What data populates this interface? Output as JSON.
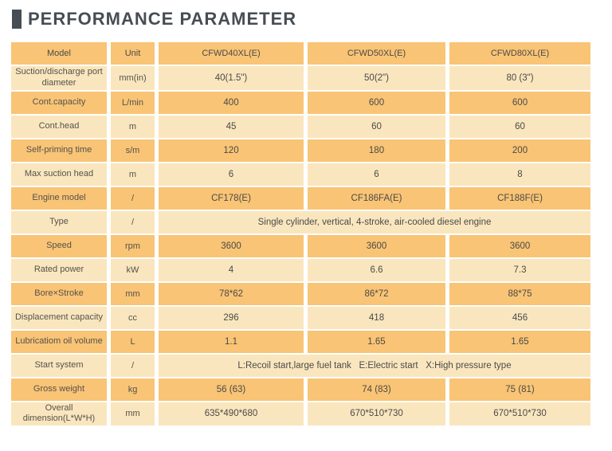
{
  "title": "PERFORMANCE PARAMETER",
  "colors": {
    "row_dark": "#F9C475",
    "row_light": "#FAE6BE",
    "title_gray": "#474D54",
    "label_text": "#55524C",
    "value_text": "#4A4A48"
  },
  "table": {
    "columns": [
      "Model",
      "Unit",
      "CFWD40XL(E)",
      "CFWD50XL(E)",
      "CFWD80XL(E)"
    ],
    "rows": [
      {
        "label": "Suction/discharge port diameter",
        "unit": "mm(in)",
        "values": [
          "40(1.5\")",
          "50(2\")",
          "80 (3\")"
        ]
      },
      {
        "label": "Cont.capacity",
        "unit": "L/min",
        "values": [
          "400",
          "600",
          "600"
        ]
      },
      {
        "label": "Cont.head",
        "unit": "m",
        "values": [
          "45",
          "60",
          "60"
        ]
      },
      {
        "label": "Self-priming time",
        "unit": "s/m",
        "values": [
          "120",
          "180",
          "200"
        ]
      },
      {
        "label": "Max suction head",
        "unit": "m",
        "values": [
          "6",
          "6",
          "8"
        ]
      },
      {
        "label": "Engine model",
        "unit": "/",
        "values": [
          "CF178(E)",
          "CF186FA(E)",
          "CF188F(E)"
        ]
      },
      {
        "label": "Type",
        "unit": "/",
        "span": "Single cylinder, vertical, 4-stroke, air-cooled diesel engine"
      },
      {
        "label": "Speed",
        "unit": "rpm",
        "values": [
          "3600",
          "3600",
          "3600"
        ]
      },
      {
        "label": "Rated power",
        "unit": "kW",
        "values": [
          "4",
          "6.6",
          "7.3"
        ]
      },
      {
        "label": "Bore×Stroke",
        "unit": "mm",
        "values": [
          "78*62",
          "86*72",
          "88*75"
        ]
      },
      {
        "label": "Displacement capacity",
        "unit": "cc",
        "values": [
          "296",
          "418",
          "456"
        ]
      },
      {
        "label": "Lubricatiom oil volume",
        "unit": "L",
        "values": [
          "1.1",
          "1.65",
          "1.65"
        ]
      },
      {
        "label": "Start system",
        "unit": "/",
        "span": "L:Recoil start,large fuel tank   E:Electric start   X:High pressure type"
      },
      {
        "label": "Gross weight",
        "unit": "kg",
        "values": [
          "56 (63)",
          "74 (83)",
          "75 (81)"
        ]
      },
      {
        "label": "Overall dimension(L*W*H)",
        "unit": "mm",
        "values": [
          "635*490*680",
          "670*510*730",
          "670*510*730"
        ]
      }
    ]
  }
}
